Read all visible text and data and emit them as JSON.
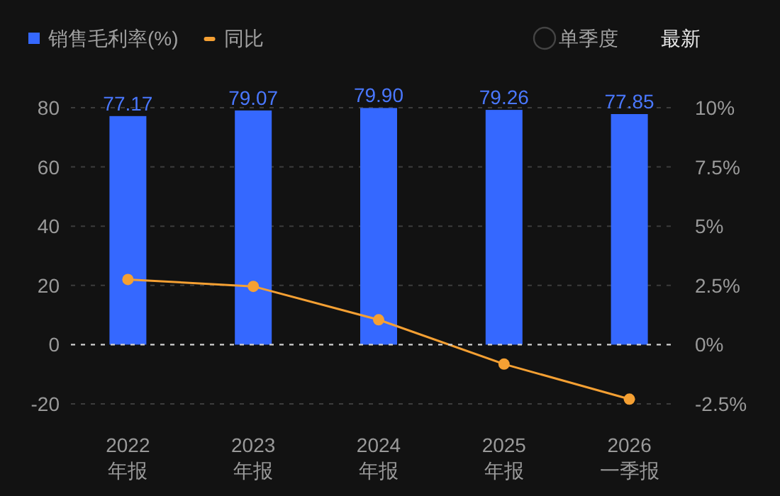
{
  "chart_data": {
    "type": "bar",
    "categories": [
      "2022\n年报",
      "2023\n年报",
      "2024\n年报",
      "2025\n年报",
      "2026\n一季报"
    ],
    "series": [
      {
        "name": "销售毛利率(%)",
        "color": "#3568ff",
        "values": [
          77.17,
          79.07,
          79.9,
          79.26,
          77.85
        ],
        "value_labels": [
          "77.17",
          "79.07",
          "79.90",
          "79.26",
          "77.85"
        ]
      },
      {
        "name": "同比",
        "type": "line",
        "axis": "y2",
        "color": "#f5a033",
        "values": [
          2.75,
          2.46,
          1.05,
          -0.82,
          -2.3
        ]
      }
    ],
    "ylim": [
      -20,
      80
    ],
    "yticks": [
      -20,
      0,
      20,
      40,
      60,
      80
    ],
    "y2lim": [
      -2.5,
      10
    ],
    "y2ticks": [
      {
        "value": -2.5,
        "label": "-2.5%"
      },
      {
        "value": 0,
        "label": "0%"
      },
      {
        "value": 2.5,
        "label": "2.5%"
      },
      {
        "value": 5,
        "label": "5%"
      },
      {
        "value": 7.5,
        "label": "7.5%"
      },
      {
        "value": 10,
        "label": "10%"
      }
    ],
    "ref_lines": [
      {
        "axis": "y",
        "value": 0,
        "color": "#d0d0d0",
        "line_style": "dashed"
      }
    ],
    "grid": "y",
    "legend": "top left",
    "marker": "circle",
    "annotations": [
      "单季度",
      "最新"
    ]
  }
}
